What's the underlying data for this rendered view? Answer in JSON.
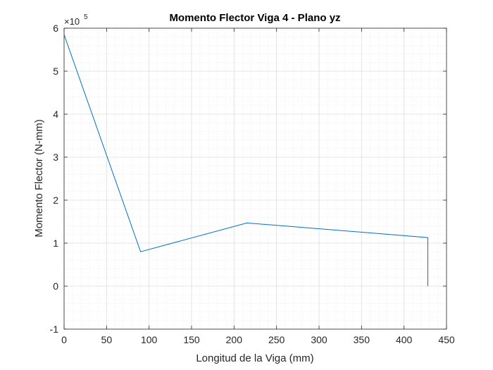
{
  "chart_data": {
    "type": "line",
    "title": "Momento Flector Viga 4 - Plano yz",
    "xlabel": "Longitud de la Viga (mm)",
    "ylabel": "Momento Flector (N-mm)",
    "y_exponent_label": "×10",
    "y_exponent_power": "5",
    "xlim": [
      0,
      450
    ],
    "ylim": [
      -1,
      6
    ],
    "x_ticks": [
      0,
      50,
      100,
      150,
      200,
      250,
      300,
      350,
      400,
      450
    ],
    "y_ticks": [
      -1,
      0,
      1,
      2,
      3,
      4,
      5,
      6
    ],
    "x_tick_labels": [
      "0",
      "50",
      "100",
      "150",
      "200",
      "250",
      "300",
      "350",
      "400",
      "450"
    ],
    "y_tick_labels": [
      "-1",
      "0",
      "1",
      "2",
      "3",
      "4",
      "5",
      "6"
    ],
    "grid": true,
    "minor_grid": true,
    "legend": "none",
    "series": [
      {
        "color": "#0072bd",
        "x": [
          0,
          90,
          215,
          428,
          428
        ],
        "y": [
          5.85,
          0.8,
          1.47,
          1.13,
          0
        ]
      }
    ]
  }
}
